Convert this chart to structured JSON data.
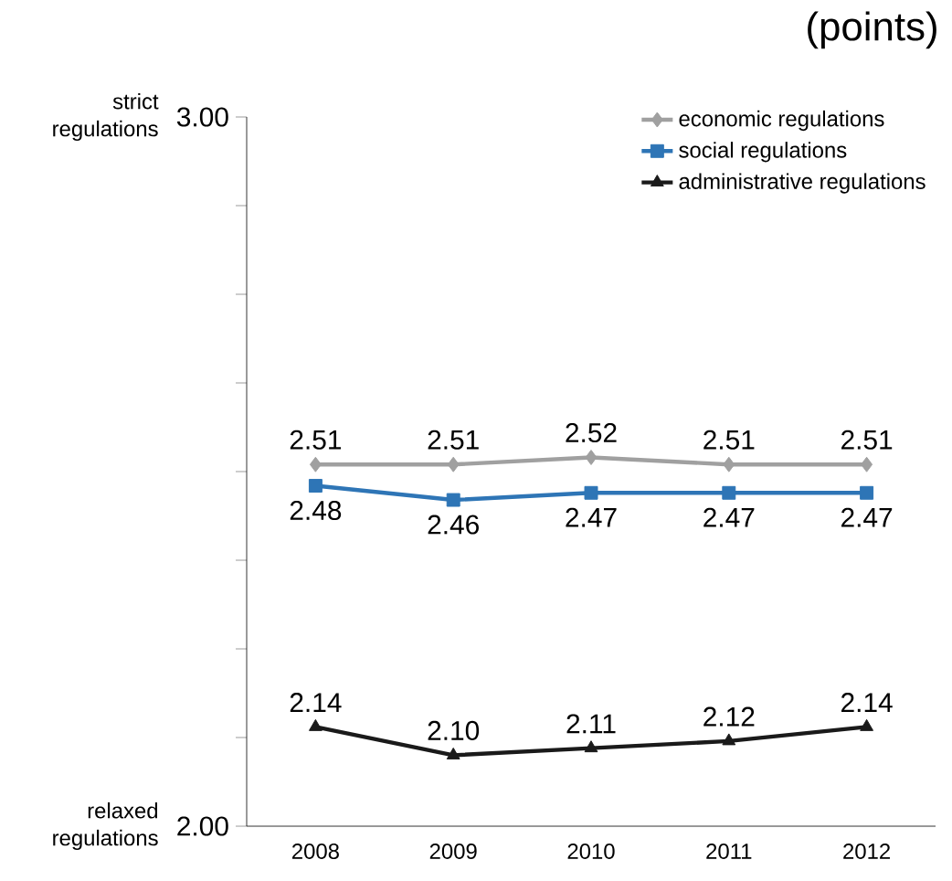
{
  "chart_data": {
    "type": "line",
    "subtitle": "(points)",
    "categories": [
      "2008",
      "2009",
      "2010",
      "2011",
      "2012"
    ],
    "series": [
      {
        "name": "economic regulations",
        "color": "#a0a0a0",
        "marker": "diamond",
        "values": [
          2.51,
          2.51,
          2.52,
          2.51,
          2.51
        ],
        "value_labels": [
          "2.51",
          "2.51",
          "2.52",
          "2.51",
          "2.51"
        ]
      },
      {
        "name": "social regulations",
        "color": "#2e75b6",
        "marker": "square",
        "values": [
          2.48,
          2.46,
          2.47,
          2.47,
          2.47
        ],
        "value_labels": [
          "2.48",
          "2.46",
          "2.47",
          "2.47",
          "2.47"
        ]
      },
      {
        "name": "administrative regulations",
        "color": "#1a1a1a",
        "marker": "triangle",
        "values": [
          2.14,
          2.1,
          2.11,
          2.12,
          2.14
        ],
        "value_labels": [
          "2.14",
          "2.10",
          "2.11",
          "2.12",
          "2.14"
        ]
      }
    ],
    "ylim": [
      2.0,
      3.0
    ],
    "yticks": [
      {
        "value": 2.0,
        "label": "2.00"
      },
      {
        "value": 2.125,
        "label": null
      },
      {
        "value": 2.25,
        "label": null
      },
      {
        "value": 2.375,
        "label": null
      },
      {
        "value": 2.5,
        "label": null
      },
      {
        "value": 2.625,
        "label": null
      },
      {
        "value": 2.75,
        "label": null
      },
      {
        "value": 2.875,
        "label": null
      },
      {
        "value": 3.0,
        "label": "3.00"
      }
    ],
    "annotations": [
      "strict regulations",
      "relaxed regulations"
    ],
    "legend": "top right",
    "grid": false
  }
}
